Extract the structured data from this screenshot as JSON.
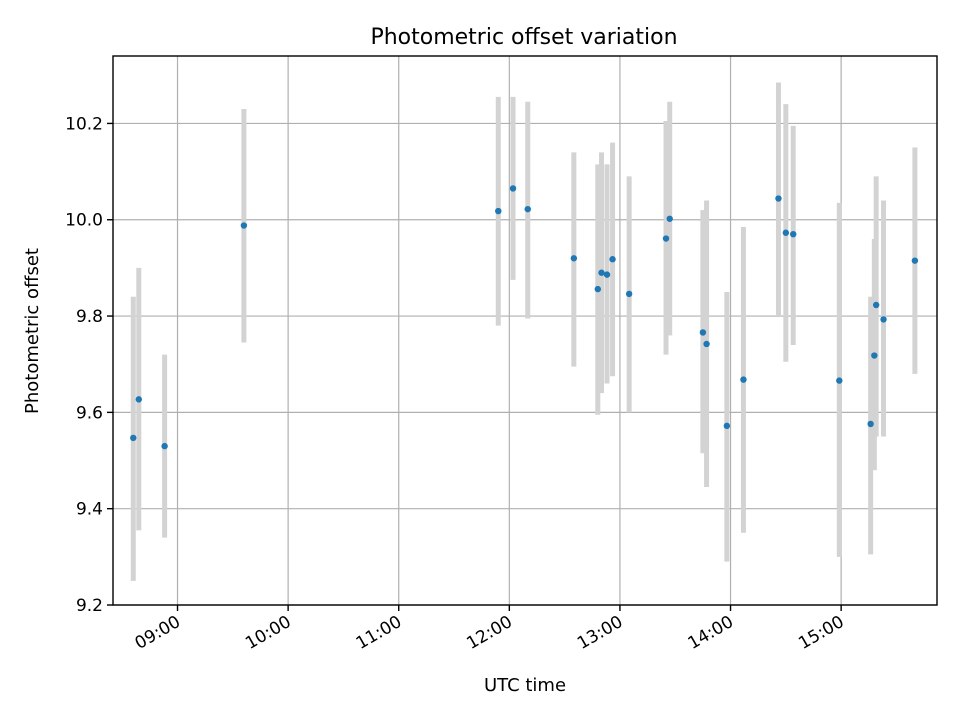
{
  "chart_data": {
    "type": "scatter",
    "title": "Photometric offset variation",
    "xlabel": "UTC time",
    "ylabel": "Photometric offset",
    "xlim": [
      "08:25",
      "15:52"
    ],
    "ylim": [
      9.2,
      10.34
    ],
    "x_ticks": [
      "09:00",
      "10:00",
      "11:00",
      "12:00",
      "13:00",
      "14:00",
      "15:00"
    ],
    "y_ticks": [
      "9.2",
      "9.4",
      "9.6",
      "9.8",
      "10.0",
      "10.2"
    ],
    "grid": true,
    "marker_color": "#1f77b4",
    "errorbar_color": "#d3d3d3",
    "points": [
      {
        "x": "08:36",
        "y": 9.547,
        "ylo": 9.25,
        "yhi": 9.84
      },
      {
        "x": "08:39",
        "y": 9.627,
        "ylo": 9.355,
        "yhi": 9.9
      },
      {
        "x": "08:53",
        "y": 9.53,
        "ylo": 9.34,
        "yhi": 9.72
      },
      {
        "x": "09:36",
        "y": 9.988,
        "ylo": 9.745,
        "yhi": 10.23
      },
      {
        "x": "11:54",
        "y": 10.018,
        "ylo": 9.78,
        "yhi": 10.255
      },
      {
        "x": "12:02",
        "y": 10.065,
        "ylo": 9.875,
        "yhi": 10.255
      },
      {
        "x": "12:10",
        "y": 10.022,
        "ylo": 9.795,
        "yhi": 10.245
      },
      {
        "x": "12:35",
        "y": 9.92,
        "ylo": 9.695,
        "yhi": 10.14
      },
      {
        "x": "12:48",
        "y": 9.856,
        "ylo": 9.595,
        "yhi": 10.115
      },
      {
        "x": "12:50",
        "y": 9.89,
        "ylo": 9.64,
        "yhi": 10.14
      },
      {
        "x": "12:53",
        "y": 9.886,
        "ylo": 9.66,
        "yhi": 10.115
      },
      {
        "x": "12:56",
        "y": 9.918,
        "ylo": 9.675,
        "yhi": 10.16
      },
      {
        "x": "13:05",
        "y": 9.846,
        "ylo": 9.6,
        "yhi": 10.09
      },
      {
        "x": "13:25",
        "y": 9.961,
        "ylo": 9.72,
        "yhi": 10.205
      },
      {
        "x": "13:27",
        "y": 10.002,
        "ylo": 9.76,
        "yhi": 10.245
      },
      {
        "x": "13:45",
        "y": 9.766,
        "ylo": 9.515,
        "yhi": 10.02
      },
      {
        "x": "13:47",
        "y": 9.742,
        "ylo": 9.445,
        "yhi": 10.04
      },
      {
        "x": "13:58",
        "y": 9.572,
        "ylo": 9.29,
        "yhi": 9.85
      },
      {
        "x": "14:07",
        "y": 9.668,
        "ylo": 9.35,
        "yhi": 9.985
      },
      {
        "x": "14:26",
        "y": 10.044,
        "ylo": 9.8,
        "yhi": 10.285
      },
      {
        "x": "14:30",
        "y": 9.973,
        "ylo": 9.705,
        "yhi": 10.24
      },
      {
        "x": "14:34",
        "y": 9.97,
        "ylo": 9.74,
        "yhi": 10.195
      },
      {
        "x": "14:59",
        "y": 9.666,
        "ylo": 9.3,
        "yhi": 10.035
      },
      {
        "x": "15:16",
        "y": 9.576,
        "ylo": 9.305,
        "yhi": 9.84
      },
      {
        "x": "15:18",
        "y": 9.718,
        "ylo": 9.48,
        "yhi": 9.96
      },
      {
        "x": "15:19",
        "y": 9.823,
        "ylo": 9.55,
        "yhi": 10.09
      },
      {
        "x": "15:23",
        "y": 9.793,
        "ylo": 9.55,
        "yhi": 10.04
      },
      {
        "x": "15:40",
        "y": 9.915,
        "ylo": 9.68,
        "yhi": 10.15
      }
    ]
  }
}
